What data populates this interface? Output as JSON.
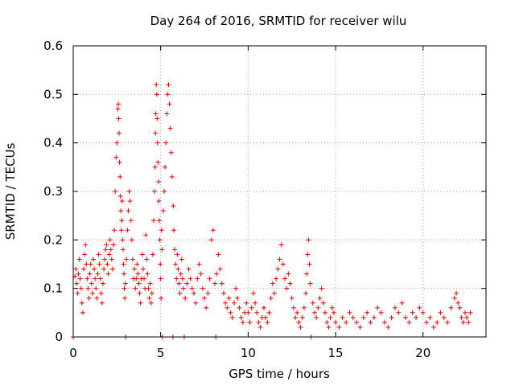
{
  "chart_data": {
    "type": "scatter",
    "title": "Day 264 of 2016, SRMTID for receiver wilu",
    "xlabel": "GPS time / hours",
    "ylabel": "SRMTID / TECUs",
    "xlim": [
      0,
      23.6
    ],
    "ylim": [
      0,
      0.6
    ],
    "xticks": [
      0,
      5,
      10,
      15,
      20
    ],
    "yticks": [
      0,
      0.1,
      0.2,
      0.3,
      0.4,
      0.5,
      0.6
    ],
    "xtick_labels": [
      "0",
      "5",
      "10",
      "15",
      "20"
    ],
    "ytick_labels": [
      "0",
      "0.1",
      "0.2",
      "0.3",
      "0.4",
      "0.5",
      "0.6"
    ],
    "grid": true,
    "marker": "+",
    "color": "#ee0000",
    "series": [
      {
        "name": "SRMTID",
        "points": [
          [
            0.0,
            0.0
          ],
          [
            0.1,
            0.125
          ],
          [
            0.15,
            0.14
          ],
          [
            0.2,
            0.11
          ],
          [
            0.25,
            0.09
          ],
          [
            0.3,
            0.13
          ],
          [
            0.35,
            0.16
          ],
          [
            0.4,
            0.12
          ],
          [
            0.45,
            0.1
          ],
          [
            0.5,
            0.07
          ],
          [
            0.55,
            0.05
          ],
          [
            0.6,
            0.14
          ],
          [
            0.65,
            0.17
          ],
          [
            0.7,
            0.19
          ],
          [
            0.75,
            0.15
          ],
          [
            0.8,
            0.12
          ],
          [
            0.85,
            0.1
          ],
          [
            0.9,
            0.08
          ],
          [
            0.95,
            0.13
          ],
          [
            1.0,
            0.15
          ],
          [
            1.05,
            0.11
          ],
          [
            1.1,
            0.09
          ],
          [
            1.15,
            0.16
          ],
          [
            1.2,
            0.14
          ],
          [
            1.25,
            0.12
          ],
          [
            1.3,
            0.1
          ],
          [
            1.35,
            0.08
          ],
          [
            1.4,
            0.13
          ],
          [
            1.45,
            0.17
          ],
          [
            1.5,
            0.15
          ],
          [
            1.55,
            0.12
          ],
          [
            1.6,
            0.09
          ],
          [
            1.65,
            0.07
          ],
          [
            1.7,
            0.11
          ],
          [
            1.75,
            0.14
          ],
          [
            1.8,
            0.16
          ],
          [
            1.85,
            0.18
          ],
          [
            1.9,
            0.19
          ],
          [
            1.95,
            0.15
          ],
          [
            2.0,
            0.13
          ],
          [
            2.05,
            0.17
          ],
          [
            2.1,
            0.2
          ],
          [
            2.15,
            0.18
          ],
          [
            2.2,
            0.16
          ],
          [
            2.25,
            0.14
          ],
          [
            2.3,
            0.19
          ],
          [
            2.35,
            0.22
          ],
          [
            2.4,
            0.3
          ],
          [
            2.45,
            0.37
          ],
          [
            2.5,
            0.4
          ],
          [
            2.55,
            0.47
          ],
          [
            2.58,
            0.48
          ],
          [
            2.6,
            0.45
          ],
          [
            2.62,
            0.42
          ],
          [
            2.65,
            0.36
          ],
          [
            2.68,
            0.33
          ],
          [
            2.7,
            0.29
          ],
          [
            2.72,
            0.26
          ],
          [
            2.75,
            0.22
          ],
          [
            2.78,
            0.24
          ],
          [
            2.8,
            0.28
          ],
          [
            2.82,
            0.2
          ],
          [
            2.85,
            0.18
          ],
          [
            2.88,
            0.15
          ],
          [
            2.9,
            0.13
          ],
          [
            2.92,
            0.1
          ],
          [
            2.95,
            0.08
          ],
          [
            2.98,
            0.11
          ],
          [
            3.0,
            0.0
          ],
          [
            3.05,
            0.16
          ],
          [
            3.1,
            0.22
          ],
          [
            3.15,
            0.26
          ],
          [
            3.2,
            0.3
          ],
          [
            3.25,
            0.28
          ],
          [
            3.3,
            0.24
          ],
          [
            3.35,
            0.2
          ],
          [
            3.4,
            0.16
          ],
          [
            3.45,
            0.12
          ],
          [
            3.5,
            0.14
          ],
          [
            3.55,
            0.1
          ],
          [
            3.6,
            0.12
          ],
          [
            3.65,
            0.15
          ],
          [
            3.7,
            0.13
          ],
          [
            3.75,
            0.11
          ],
          [
            3.8,
            0.09
          ],
          [
            3.85,
            0.07
          ],
          [
            3.9,
            0.12
          ],
          [
            3.95,
            0.17
          ],
          [
            4.0,
            0.14
          ],
          [
            4.05,
            0.12
          ],
          [
            4.1,
            0.1
          ],
          [
            4.15,
            0.21
          ],
          [
            4.2,
            0.16
          ],
          [
            4.25,
            0.13
          ],
          [
            4.3,
            0.1
          ],
          [
            4.35,
            0.08
          ],
          [
            4.4,
            0.11
          ],
          [
            4.45,
            0.07
          ],
          [
            4.5,
            0.09
          ],
          [
            4.55,
            0.17
          ],
          [
            4.6,
            0.24
          ],
          [
            4.65,
            0.3
          ],
          [
            4.68,
            0.35
          ],
          [
            4.7,
            0.42
          ],
          [
            4.72,
            0.46
          ],
          [
            4.75,
            0.52
          ],
          [
            4.78,
            0.5
          ],
          [
            4.8,
            0.45
          ],
          [
            4.82,
            0.4
          ],
          [
            4.85,
            0.36
          ],
          [
            4.88,
            0.32
          ],
          [
            4.9,
            0.28
          ],
          [
            4.92,
            0.24
          ],
          [
            4.95,
            0.2
          ],
          [
            4.98,
            0.15
          ],
          [
            5.0,
            0.12
          ],
          [
            5.02,
            0.08
          ],
          [
            5.05,
            0.22
          ],
          [
            5.08,
            0.18
          ],
          [
            5.1,
            0.0
          ],
          [
            5.15,
            0.26
          ],
          [
            5.2,
            0.3
          ],
          [
            5.25,
            0.35
          ],
          [
            5.3,
            0.4
          ],
          [
            5.35,
            0.46
          ],
          [
            5.4,
            0.5
          ],
          [
            5.45,
            0.52
          ],
          [
            5.5,
            0.48
          ],
          [
            5.55,
            0.43
          ],
          [
            5.6,
            0.38
          ],
          [
            5.65,
            0.33
          ],
          [
            5.7,
            0.0
          ],
          [
            5.72,
            0.27
          ],
          [
            5.75,
            0.22
          ],
          [
            5.8,
            0.18
          ],
          [
            5.85,
            0.15
          ],
          [
            5.9,
            0.12
          ],
          [
            5.95,
            0.17
          ],
          [
            6.0,
            0.14
          ],
          [
            6.05,
            0.11
          ],
          [
            6.1,
            0.09
          ],
          [
            6.15,
            0.13
          ],
          [
            6.2,
            0.16
          ],
          [
            6.25,
            0.12
          ],
          [
            6.3,
            0.1
          ],
          [
            6.35,
            0.0
          ],
          [
            6.4,
            0.08
          ],
          [
            6.5,
            0.11
          ],
          [
            6.6,
            0.14
          ],
          [
            6.7,
            0.12
          ],
          [
            6.8,
            0.1
          ],
          [
            6.9,
            0.09
          ],
          [
            7.0,
            0.07
          ],
          [
            7.1,
            0.12
          ],
          [
            7.2,
            0.15
          ],
          [
            7.3,
            0.13
          ],
          [
            7.4,
            0.1
          ],
          [
            7.5,
            0.08
          ],
          [
            7.6,
            0.06
          ],
          [
            7.7,
            0.09
          ],
          [
            7.8,
            0.12
          ],
          [
            7.9,
            0.2
          ],
          [
            8.0,
            0.22
          ],
          [
            8.1,
            0.11
          ],
          [
            8.15,
            0.0
          ],
          [
            8.2,
            0.13
          ],
          [
            8.3,
            0.17
          ],
          [
            8.4,
            0.14
          ],
          [
            8.5,
            0.11
          ],
          [
            8.6,
            0.09
          ],
          [
            8.7,
            0.07
          ],
          [
            8.8,
            0.06
          ],
          [
            8.9,
            0.08
          ],
          [
            9.0,
            0.05
          ],
          [
            9.1,
            0.04
          ],
          [
            9.2,
            0.07
          ],
          [
            9.3,
            0.1
          ],
          [
            9.4,
            0.08
          ],
          [
            9.5,
            0.06
          ],
          [
            9.6,
            0.04
          ],
          [
            9.7,
            0.03
          ],
          [
            9.8,
            0.05
          ],
          [
            9.9,
            0.07
          ],
          [
            10.0,
            0.05
          ],
          [
            10.1,
            0.03
          ],
          [
            10.2,
            0.06
          ],
          [
            10.3,
            0.09
          ],
          [
            10.4,
            0.07
          ],
          [
            10.5,
            0.05
          ],
          [
            10.6,
            0.03
          ],
          [
            10.7,
            0.02
          ],
          [
            10.8,
            0.04
          ],
          [
            10.9,
            0.06
          ],
          [
            11.0,
            0.04
          ],
          [
            11.1,
            0.03
          ],
          [
            11.2,
            0.05
          ],
          [
            11.3,
            0.08
          ],
          [
            11.4,
            0.11
          ],
          [
            11.5,
            0.09
          ],
          [
            11.6,
            0.12
          ],
          [
            11.7,
            0.14
          ],
          [
            11.8,
            0.16
          ],
          [
            11.9,
            0.19
          ],
          [
            12.0,
            0.15
          ],
          [
            12.1,
            0.12
          ],
          [
            12.2,
            0.1
          ],
          [
            12.3,
            0.13
          ],
          [
            12.4,
            0.11
          ],
          [
            12.5,
            0.08
          ],
          [
            12.6,
            0.06
          ],
          [
            12.7,
            0.04
          ],
          [
            12.8,
            0.05
          ],
          [
            12.9,
            0.03
          ],
          [
            13.0,
            0.02
          ],
          [
            13.1,
            0.04
          ],
          [
            13.2,
            0.06
          ],
          [
            13.3,
            0.09
          ],
          [
            13.35,
            0.13
          ],
          [
            13.4,
            0.17
          ],
          [
            13.45,
            0.2
          ],
          [
            13.5,
            0.15
          ],
          [
            13.55,
            0.11
          ],
          [
            13.6,
            0.0
          ],
          [
            13.7,
            0.07
          ],
          [
            13.8,
            0.05
          ],
          [
            13.9,
            0.04
          ],
          [
            14.0,
            0.06
          ],
          [
            14.1,
            0.08
          ],
          [
            14.2,
            0.1
          ],
          [
            14.3,
            0.07
          ],
          [
            14.4,
            0.05
          ],
          [
            14.5,
            0.03
          ],
          [
            14.6,
            0.02
          ],
          [
            14.7,
            0.04
          ],
          [
            14.8,
            0.06
          ],
          [
            14.9,
            0.05
          ],
          [
            15.0,
            0.03
          ],
          [
            15.2,
            0.02
          ],
          [
            15.4,
            0.04
          ],
          [
            15.6,
            0.03
          ],
          [
            15.8,
            0.05
          ],
          [
            16.0,
            0.04
          ],
          [
            16.2,
            0.03
          ],
          [
            16.4,
            0.02
          ],
          [
            16.6,
            0.04
          ],
          [
            16.8,
            0.05
          ],
          [
            17.0,
            0.03
          ],
          [
            17.2,
            0.04
          ],
          [
            17.4,
            0.06
          ],
          [
            17.6,
            0.05
          ],
          [
            17.8,
            0.03
          ],
          [
            18.0,
            0.02
          ],
          [
            18.2,
            0.04
          ],
          [
            18.4,
            0.06
          ],
          [
            18.6,
            0.05
          ],
          [
            18.8,
            0.07
          ],
          [
            19.0,
            0.04
          ],
          [
            19.2,
            0.03
          ],
          [
            19.4,
            0.05
          ],
          [
            19.6,
            0.04
          ],
          [
            19.8,
            0.06
          ],
          [
            20.0,
            0.05
          ],
          [
            20.2,
            0.03
          ],
          [
            20.4,
            0.04
          ],
          [
            20.6,
            0.02
          ],
          [
            20.8,
            0.03
          ],
          [
            21.0,
            0.05
          ],
          [
            21.2,
            0.04
          ],
          [
            21.4,
            0.03
          ],
          [
            21.6,
            0.06
          ],
          [
            21.8,
            0.08
          ],
          [
            21.9,
            0.09
          ],
          [
            22.0,
            0.07
          ],
          [
            22.1,
            0.06
          ],
          [
            22.2,
            0.04
          ],
          [
            22.3,
            0.03
          ],
          [
            22.4,
            0.05
          ],
          [
            22.5,
            0.04
          ],
          [
            22.6,
            0.03
          ],
          [
            22.7,
            0.05
          ]
        ]
      }
    ]
  }
}
